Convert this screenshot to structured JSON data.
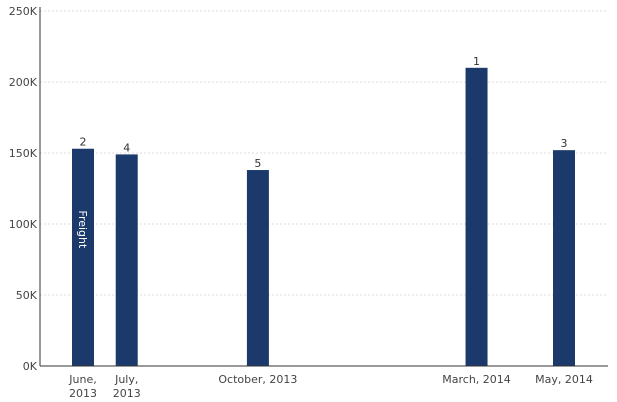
{
  "chart_data": {
    "type": "bar",
    "categories": [
      "June, 2013",
      "July, 2013",
      "October, 2013",
      "March, 2014",
      "May, 2014"
    ],
    "category_dates": [
      "2013-06",
      "2013-07",
      "2013-10",
      "2014-03",
      "2014-05"
    ],
    "series": [
      {
        "name": "Freight",
        "values": [
          153000,
          149000,
          138000,
          210000,
          152000
        ],
        "data_labels": [
          "2",
          "4",
          "5",
          "1",
          "3"
        ]
      }
    ],
    "yticks": [
      "0K",
      "50K",
      "100K",
      "150K",
      "200K",
      "250K"
    ],
    "ylim": [
      0,
      250000
    ],
    "grid": true,
    "bar_color": "#1b3a6b",
    "grid_color": "#dddddd",
    "axis_color": "#333333"
  }
}
